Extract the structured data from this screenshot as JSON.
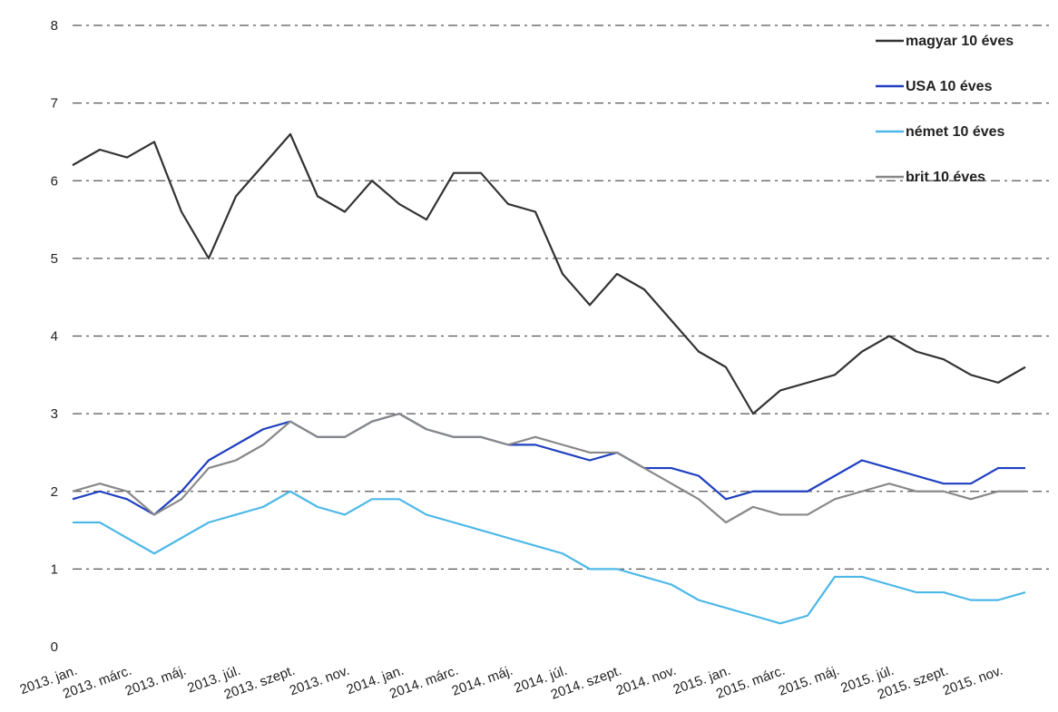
{
  "chart_data": {
    "type": "line",
    "categories": [
      "2013. jan.",
      null,
      "2013. márc.",
      null,
      "2013. máj.",
      null,
      "2013. júl.",
      null,
      "2013. szept.",
      null,
      "2013. nov.",
      null,
      "2014. jan.",
      null,
      "2014. márc.",
      null,
      "2014. máj.",
      null,
      "2014. júl.",
      null,
      "2014. szept.",
      null,
      "2014. nov.",
      null,
      "2015. jan.",
      null,
      "2015. márc.",
      null,
      "2015. máj.",
      null,
      "2015. júl.",
      null,
      "2015. szept.",
      null,
      "2015. nov.",
      null
    ],
    "series": [
      {
        "name": "magyar 10 éves",
        "color": "#333333",
        "values": [
          6.2,
          6.4,
          6.3,
          6.5,
          5.6,
          5.0,
          5.8,
          6.2,
          6.6,
          5.8,
          5.6,
          6.0,
          5.7,
          5.5,
          6.1,
          6.1,
          5.7,
          5.6,
          4.8,
          4.4,
          4.8,
          4.6,
          4.2,
          3.8,
          3.6,
          3.0,
          3.3,
          3.4,
          3.5,
          3.8,
          4.0,
          3.8,
          3.7,
          3.5,
          3.4,
          3.6
        ]
      },
      {
        "name": "USA 10 éves",
        "color": "#1f3fbf",
        "values": [
          1.9,
          2.0,
          1.9,
          1.7,
          2.0,
          2.4,
          2.6,
          2.8,
          2.9,
          2.7,
          2.7,
          2.9,
          3.0,
          2.8,
          2.7,
          2.7,
          2.6,
          2.6,
          2.5,
          2.4,
          2.5,
          2.3,
          2.3,
          2.2,
          1.9,
          2.0,
          2.0,
          2.0,
          2.2,
          2.4,
          2.3,
          2.2,
          2.1,
          2.1,
          2.3,
          2.3
        ]
      },
      {
        "name": "német 10 éves",
        "color": "#4db8e8",
        "values": [
          1.6,
          1.6,
          1.4,
          1.2,
          1.4,
          1.6,
          1.7,
          1.8,
          2.0,
          1.8,
          1.7,
          1.9,
          1.9,
          1.7,
          1.6,
          1.5,
          1.4,
          1.3,
          1.2,
          1.0,
          1.0,
          0.9,
          0.8,
          0.6,
          0.5,
          0.4,
          0.3,
          0.4,
          0.9,
          0.9,
          0.8,
          0.7,
          0.7,
          0.6,
          0.6,
          0.7
        ]
      },
      {
        "name": "brit 10 éves",
        "color": "#888888",
        "values": [
          2.0,
          2.1,
          2.0,
          1.7,
          1.9,
          2.3,
          2.4,
          2.6,
          2.9,
          2.7,
          2.7,
          2.9,
          3.0,
          2.8,
          2.7,
          2.7,
          2.6,
          2.7,
          2.6,
          2.5,
          2.5,
          2.3,
          2.1,
          1.9,
          1.6,
          1.8,
          1.7,
          1.7,
          1.9,
          2.0,
          2.1,
          2.0,
          2.0,
          1.9,
          2.0,
          2.0
        ]
      }
    ],
    "ylim": [
      0,
      8
    ],
    "yticks": [
      0,
      1,
      2,
      3,
      4,
      5,
      6,
      7,
      8
    ],
    "grid": true,
    "legend": "right"
  }
}
